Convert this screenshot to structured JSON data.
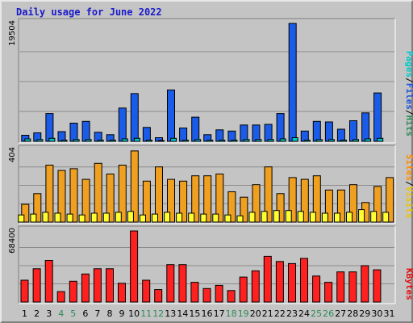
{
  "chart_data": {
    "type": "bar",
    "title": "Daily usage for June 2022",
    "categories": [
      "1",
      "2",
      "3",
      "4",
      "5",
      "6",
      "7",
      "8",
      "9",
      "10",
      "11",
      "12",
      "13",
      "14",
      "15",
      "16",
      "17",
      "18",
      "19",
      "20",
      "21",
      "22",
      "23",
      "24",
      "25",
      "26",
      "27",
      "28",
      "29",
      "30",
      "31"
    ],
    "weekend_days": [
      "4",
      "5",
      "11",
      "12",
      "18",
      "19",
      "25",
      "26"
    ],
    "panels": [
      {
        "id": "top",
        "ymax": 19504,
        "ymax_label": "19504",
        "legend": [
          {
            "text": "Pages",
            "color": "#00c8c8"
          },
          {
            "text": "/",
            "color": "#000000"
          },
          {
            "text": "Files",
            "color": "#1a55d8"
          },
          {
            "text": "/",
            "color": "#000000"
          },
          {
            "text": "Hits",
            "color": "#2e8b57"
          }
        ],
        "series": [
          {
            "name": "Hits",
            "color": "#1a5ce8",
            "values": [
              1000,
              1400,
              4600,
              1600,
              3000,
              3300,
              1500,
              1100,
              5500,
              7900,
              2300,
              600,
              8500,
              2200,
              4000,
              1100,
              1900,
              1700,
              2700,
              2700,
              2800,
              4600,
              19504,
              1700,
              3300,
              3200,
              2000,
              3400,
              4700,
              8000,
              null
            ]
          },
          {
            "name": "Files",
            "color": "#00c8c8",
            "values": [
              400,
              300,
              500,
              200,
              300,
              300,
              200,
              200,
              400,
              500,
              200,
              100,
              500,
              200,
              300,
              200,
              200,
              200,
              300,
              300,
              300,
              400,
              600,
              200,
              300,
              300,
              200,
              300,
              400,
              500,
              null
            ]
          }
        ]
      },
      {
        "id": "middle",
        "ymax": 404,
        "ymax_label": "404",
        "legend": [
          {
            "text": "Sites",
            "color": "#ff8c00"
          },
          {
            "text": "/",
            "color": "#000000"
          },
          {
            "text": "Visits",
            "color": "#e8c800"
          }
        ],
        "series": [
          {
            "name": "Visits",
            "color": "#f0a020",
            "values": [
              100,
              160,
              320,
              290,
              300,
              240,
              330,
              270,
              320,
              400,
              230,
              310,
              240,
              230,
              260,
              260,
              270,
              170,
              140,
              210,
              310,
              160,
              250,
              240,
              260,
              180,
              180,
              210,
              110,
              200,
              250
            ]
          },
          {
            "name": "Sites",
            "color": "#ffff30",
            "values": [
              40,
              45,
              55,
              50,
              45,
              40,
              50,
              50,
              55,
              60,
              40,
              45,
              55,
              50,
              50,
              45,
              45,
              40,
              35,
              55,
              60,
              65,
              65,
              60,
              55,
              50,
              50,
              55,
              70,
              60,
              55
            ]
          }
        ]
      },
      {
        "id": "bottom",
        "ymax": 68400,
        "ymax_label": "68400",
        "legend": [
          {
            "text": "KBytes",
            "color": "#e01010"
          }
        ],
        "series": [
          {
            "name": "KBytes",
            "color": "#ff2020",
            "values": [
              21000,
              32000,
              40000,
              10000,
              20000,
              27000,
              32000,
              32000,
              18000,
              68400,
              21000,
              12000,
              36000,
              36000,
              19000,
              13000,
              16000,
              11000,
              24000,
              30000,
              44000,
              39000,
              37000,
              42000,
              25000,
              19000,
              29000,
              29000,
              35000,
              31000,
              null
            ]
          }
        ]
      }
    ]
  }
}
